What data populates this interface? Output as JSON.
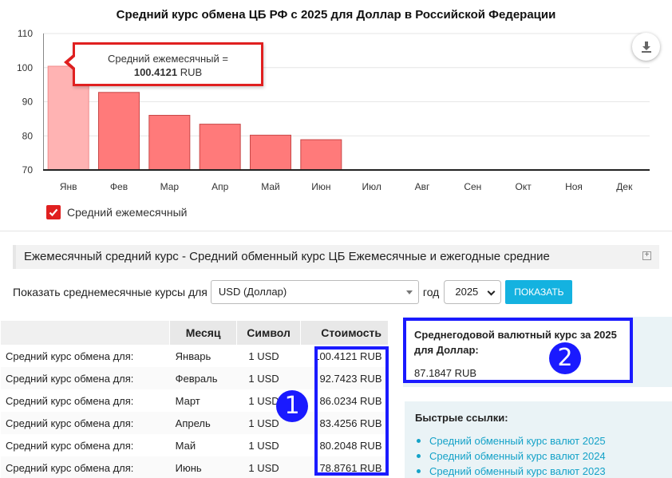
{
  "chart": {
    "title": "Средний курс обмена ЦБ РФ с 2025 для Доллар в Российской Федерации",
    "tooltip_label": "Средний ежемесячный =",
    "tooltip_value": "100.4121",
    "tooltip_unit": "RUB",
    "legend_label": "Средний ежемесячный",
    "icons": {
      "download": "download-icon",
      "legend_checkbox": "check-icon"
    },
    "colors": {
      "bar": "#ff7a7a",
      "bar_highlight": "#ffb3b3",
      "tooltip_border": "#e02020"
    }
  },
  "chart_data": {
    "type": "bar",
    "title": "Средний курс обмена ЦБ РФ с 2025 для Доллар в Российской Федерации",
    "categories": [
      "Янв",
      "Фев",
      "Мар",
      "Апр",
      "Май",
      "Июн",
      "Июл",
      "Авг",
      "Сен",
      "Окт",
      "Ноя",
      "Дек"
    ],
    "values": [
      100.4121,
      92.7423,
      86.0234,
      83.4256,
      80.2048,
      78.8761,
      null,
      null,
      null,
      null,
      null,
      null
    ],
    "y_ticks": [
      "70",
      "80",
      "90",
      "100",
      "110"
    ],
    "ylim": [
      70,
      110
    ],
    "legend": [
      "Средний ежемесячный"
    ],
    "legend_position": "bottom-left",
    "grid": true,
    "highlighted_index": 0
  },
  "section": {
    "title": "Ежемесячный средний курс - Средний обменный курс ЦБ Ежемесячные и ежегодные средние",
    "expand_symbol": "⊞"
  },
  "filter": {
    "label": "Показать среднемесячные курсы для",
    "currency_value": "USD (Доллар)",
    "year_label": "год",
    "year_value": "2025",
    "show_button": "ПОКАЗАТЬ"
  },
  "table": {
    "headers": [
      "",
      "Месяц",
      "Символ",
      "Стоимость"
    ],
    "rows": [
      {
        "desc": "Средний курс обмена для:",
        "month": "Январь",
        "symbol": "1 USD",
        "value": "100.4121 RUB"
      },
      {
        "desc": "Средний курс обмена для:",
        "month": "Февраль",
        "symbol": "1 USD",
        "value": "92.7423 RUB"
      },
      {
        "desc": "Средний курс обмена для:",
        "month": "Март",
        "symbol": "1 USD",
        "value": "86.0234 RUB"
      },
      {
        "desc": "Средний курс обмена для:",
        "month": "Апрель",
        "symbol": "1 USD",
        "value": "83.4256 RUB"
      },
      {
        "desc": "Средний курс обмена для:",
        "month": "Май",
        "symbol": "1 USD",
        "value": "80.2048 RUB"
      },
      {
        "desc": "Средний курс обмена для:",
        "month": "Июнь",
        "symbol": "1 USD",
        "value": "78.8761 RUB"
      }
    ]
  },
  "annual": {
    "title": "Среднегодовой валютный курс за 2025 для Доллар:",
    "value": "87.1847 RUB"
  },
  "links": {
    "title": "Быстрые ссылки:",
    "items": [
      "Средний обменный курс валют 2025",
      "Средний обменный курс валют 2024",
      "Средний обменный курс валют 2023"
    ]
  },
  "annotations": {
    "badge_1": "1",
    "badge_2": "2",
    "color": "#1a1aff"
  }
}
